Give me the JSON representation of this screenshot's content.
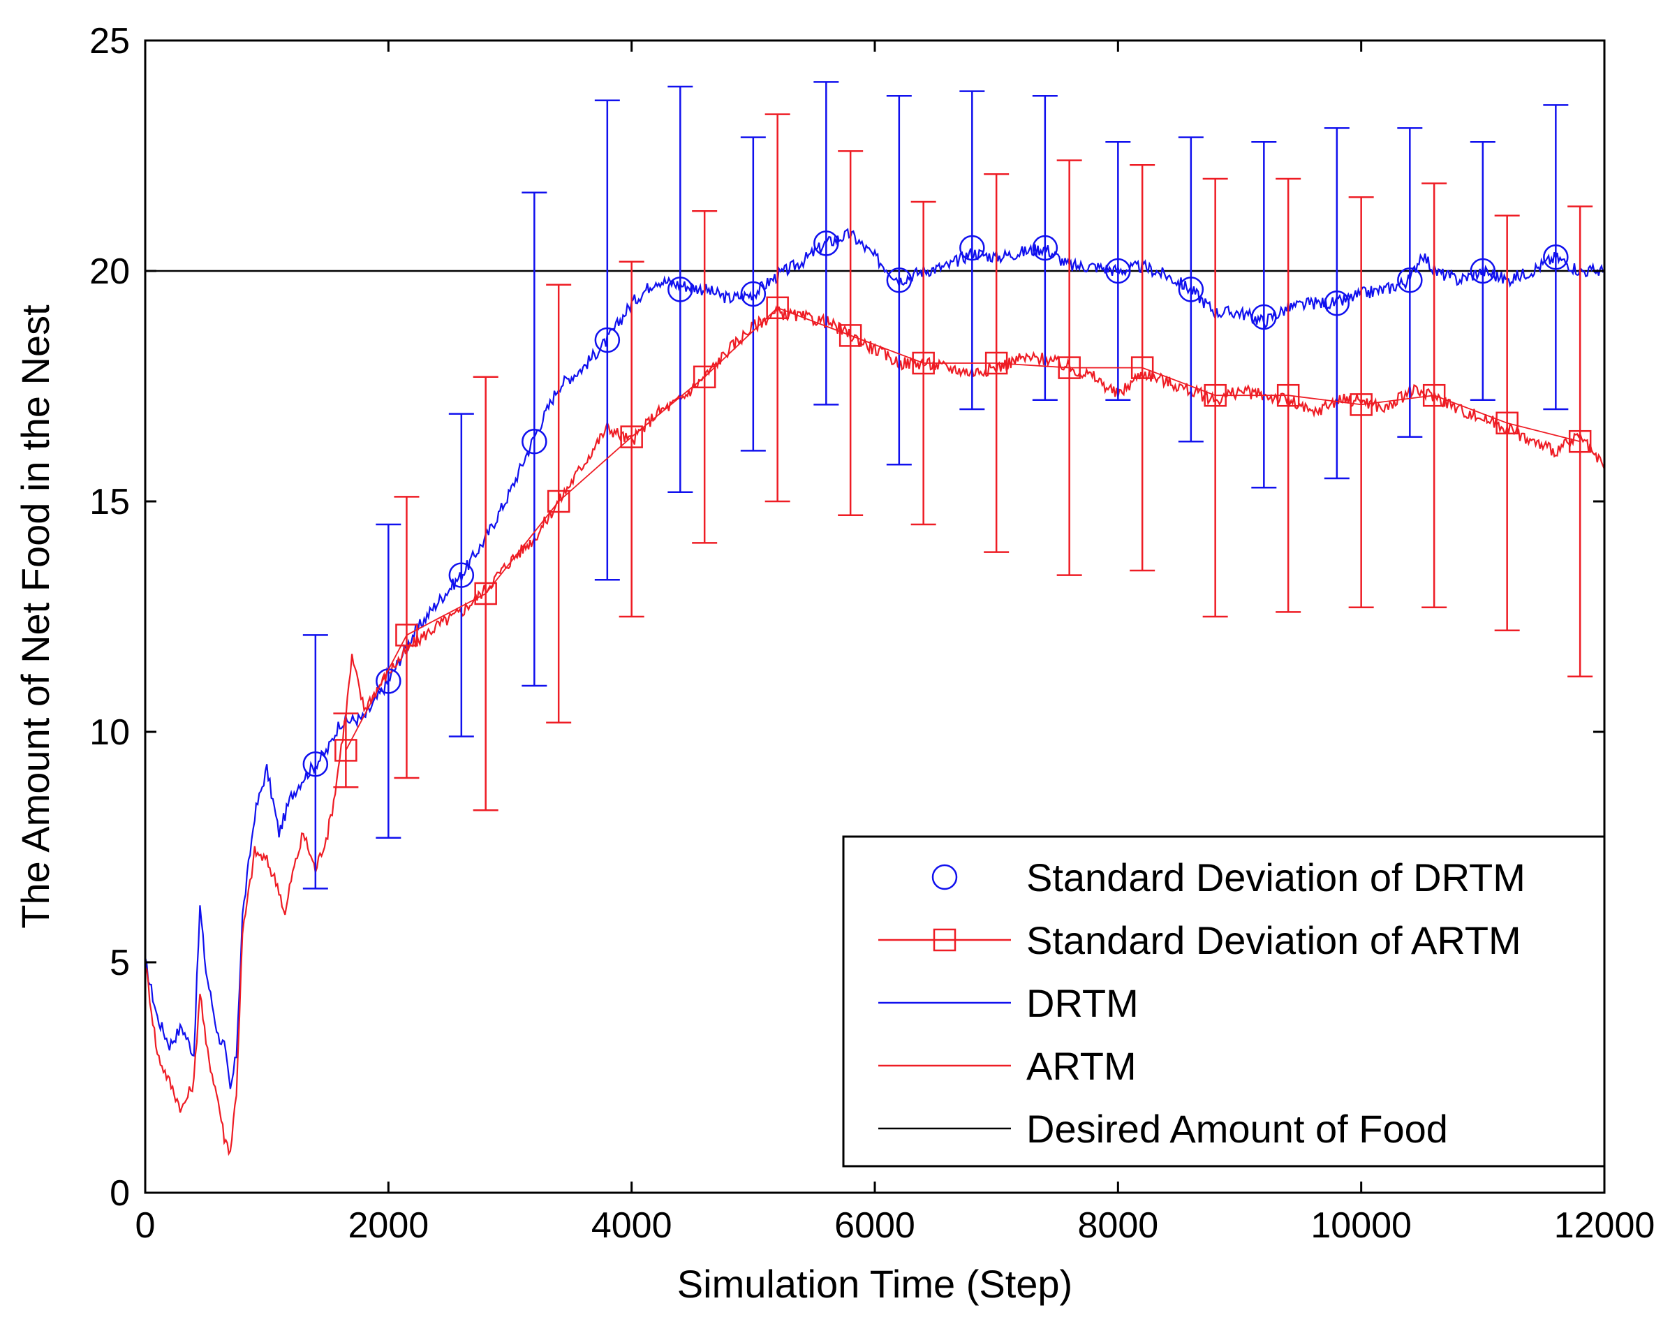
{
  "chart_data": {
    "type": "line",
    "title": "",
    "xlabel": "Simulation Time (Step)",
    "ylabel": "The Amount of Net Food in the Nest",
    "xlim": [
      0,
      12000
    ],
    "ylim": [
      0,
      25
    ],
    "x_ticks": [
      "0",
      "2000",
      "4000",
      "6000",
      "8000",
      "10000",
      "12000"
    ],
    "y_ticks": [
      "0",
      "5",
      "10",
      "15",
      "20",
      "25"
    ],
    "grid": false,
    "legend_position": "bottom-right",
    "legend": [
      "Standard Deviation of DRTM",
      "Standard Deviation of ARTM",
      "DRTM",
      "ARTM",
      "Desired Amount of Food"
    ],
    "colors": {
      "drtm": "#1010ee",
      "artm": "#ee1c24",
      "desired": "#000000"
    },
    "desired_amount": 20,
    "series": [
      {
        "name": "DRTM",
        "color": "#1010ee",
        "x": [
          0,
          100,
          200,
          300,
          400,
          450,
          500,
          600,
          650,
          700,
          750,
          800,
          900,
          1000,
          1100,
          1200,
          1300,
          1400,
          1500,
          1600,
          1800,
          2000,
          2200,
          2400,
          2600,
          2800,
          3000,
          3200,
          3400,
          3600,
          3800,
          4000,
          4200,
          4400,
          4600,
          4800,
          5000,
          5200,
          5400,
          5600,
          5800,
          6000,
          6200,
          6400,
          6600,
          6800,
          7000,
          7200,
          7400,
          7600,
          7800,
          8000,
          8200,
          8400,
          8600,
          8800,
          9000,
          9200,
          9400,
          9600,
          9800,
          10000,
          10200,
          10400,
          10500,
          10600,
          10800,
          11000,
          11200,
          11400,
          11600,
          11800,
          12000
        ],
        "y": [
          5.0,
          3.8,
          3.2,
          3.6,
          3.0,
          6.2,
          4.8,
          3.4,
          3.2,
          2.2,
          3.0,
          6.0,
          8.2,
          9.2,
          7.8,
          8.6,
          9.0,
          9.3,
          9.6,
          10.2,
          10.3,
          11.1,
          12.1,
          12.8,
          13.4,
          14.2,
          15.2,
          16.4,
          17.5,
          17.9,
          18.5,
          19.3,
          19.8,
          19.7,
          19.6,
          19.4,
          19.5,
          19.9,
          20.2,
          20.6,
          20.8,
          20.3,
          19.8,
          20.0,
          20.1,
          20.4,
          20.3,
          20.4,
          20.5,
          20.1,
          20.1,
          20.0,
          20.1,
          19.9,
          19.6,
          19.1,
          19.1,
          18.9,
          19.2,
          19.3,
          19.3,
          19.5,
          19.6,
          19.8,
          20.4,
          20.0,
          19.8,
          20.0,
          19.8,
          20.0,
          20.3,
          20.0,
          20.0
        ]
      },
      {
        "name": "ARTM",
        "color": "#ee1c24",
        "x": [
          0,
          100,
          200,
          300,
          400,
          450,
          500,
          600,
          650,
          700,
          750,
          800,
          900,
          1000,
          1100,
          1150,
          1200,
          1300,
          1400,
          1500,
          1550,
          1650,
          1700,
          1800,
          2000,
          2200,
          2400,
          2600,
          2800,
          3000,
          3200,
          3400,
          3600,
          3800,
          4000,
          4200,
          4400,
          4600,
          4800,
          5000,
          5200,
          5400,
          5600,
          5800,
          6000,
          6200,
          6400,
          6600,
          6800,
          7000,
          7200,
          7400,
          7600,
          7800,
          8000,
          8200,
          8400,
          8600,
          8800,
          9000,
          9200,
          9400,
          9600,
          9800,
          10000,
          10200,
          10400,
          10600,
          10800,
          11000,
          11200,
          11400,
          11600,
          11800,
          12000
        ],
        "y": [
          5.0,
          3.0,
          2.4,
          1.8,
          2.4,
          4.4,
          3.2,
          2.0,
          1.2,
          0.9,
          2.2,
          5.6,
          7.4,
          7.2,
          6.6,
          6.0,
          6.8,
          7.8,
          7.0,
          7.8,
          8.5,
          10.4,
          11.6,
          10.5,
          11.3,
          11.9,
          12.3,
          12.6,
          13.1,
          13.7,
          14.2,
          15.0,
          15.8,
          16.6,
          16.3,
          16.9,
          17.2,
          17.7,
          18.3,
          18.8,
          19.1,
          19.0,
          18.9,
          18.6,
          18.3,
          18.0,
          18.0,
          17.9,
          17.8,
          17.9,
          18.1,
          18.1,
          17.9,
          17.7,
          17.3,
          17.8,
          17.6,
          17.4,
          17.2,
          17.4,
          17.3,
          17.2,
          16.9,
          17.2,
          17.2,
          17.0,
          17.4,
          17.3,
          17.0,
          16.8,
          16.6,
          16.3,
          16.1,
          16.4,
          15.7
        ]
      }
    ],
    "std_drtm": {
      "x": [
        1400,
        2000,
        2600,
        3200,
        3800,
        4400,
        5000,
        5600,
        6200,
        6800,
        7400,
        8000,
        8600,
        9200,
        9800,
        10400,
        11000,
        11600
      ],
      "mean": [
        9.3,
        11.1,
        13.4,
        16.3,
        18.5,
        19.6,
        19.5,
        20.6,
        19.8,
        20.5,
        20.5,
        20.0,
        19.6,
        19.0,
        19.3,
        19.8,
        20.0,
        20.3
      ],
      "lower": [
        6.6,
        7.7,
        9.9,
        11.0,
        13.3,
        15.2,
        16.1,
        17.1,
        15.8,
        17.0,
        17.2,
        17.2,
        16.3,
        15.3,
        15.5,
        16.4,
        17.2,
        17.0
      ],
      "upper": [
        12.1,
        14.5,
        16.9,
        21.7,
        23.7,
        24.0,
        22.9,
        24.1,
        23.8,
        23.9,
        23.8,
        22.8,
        22.9,
        22.8,
        23.1,
        23.1,
        22.8,
        23.6
      ]
    },
    "std_artm": {
      "x": [
        1650,
        2150,
        2800,
        3400,
        4000,
        4600,
        5200,
        5800,
        6400,
        7000,
        7600,
        8200,
        8800,
        9400,
        10000,
        10600,
        11200,
        11800
      ],
      "mean": [
        9.6,
        12.1,
        13.0,
        15.0,
        16.4,
        17.7,
        19.2,
        18.6,
        18.0,
        18.0,
        17.9,
        17.9,
        17.3,
        17.3,
        17.1,
        17.3,
        16.7,
        16.3
      ],
      "lower": [
        8.8,
        9.0,
        8.3,
        10.2,
        12.5,
        14.1,
        15.0,
        14.7,
        14.5,
        13.9,
        13.4,
        13.5,
        12.5,
        12.6,
        12.7,
        12.7,
        12.2,
        11.2
      ],
      "upper": [
        10.4,
        15.1,
        17.7,
        19.7,
        20.2,
        21.3,
        23.4,
        22.6,
        21.5,
        22.1,
        22.4,
        22.3,
        22.0,
        22.0,
        21.6,
        21.9,
        21.2,
        21.4
      ]
    }
  }
}
